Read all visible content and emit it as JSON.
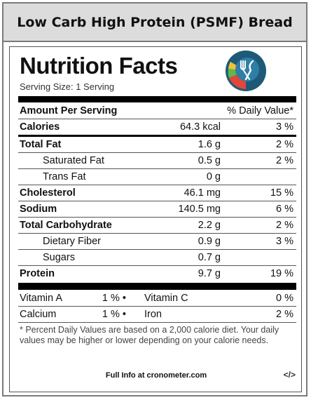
{
  "header": {
    "title": "Low Carb High Protein (PSMF) Bread"
  },
  "label": {
    "title": "Nutrition Facts",
    "serving_size": "Serving Size: 1 Serving",
    "amount_per_serving": "Amount Per Serving",
    "daily_value_header": "% Daily Value*",
    "rows": [
      {
        "name": "Calories",
        "amount": "64.3 kcal",
        "dv": "3 %"
      },
      {
        "name": "Total Fat",
        "amount": "1.6 g",
        "dv": "2 %"
      },
      {
        "name": "Saturated Fat",
        "amount": "0.5 g",
        "dv": "2 %"
      },
      {
        "name": "Trans Fat",
        "amount": "0 g",
        "dv": ""
      },
      {
        "name": "Cholesterol",
        "amount": "46.1 mg",
        "dv": "15 %"
      },
      {
        "name": "Sodium",
        "amount": "140.5 mg",
        "dv": "6 %"
      },
      {
        "name": "Total Carbohydrate",
        "amount": "2.2 g",
        "dv": "2 %"
      },
      {
        "name": "Dietary Fiber",
        "amount": "0.9 g",
        "dv": "3 %"
      },
      {
        "name": "Sugars",
        "amount": "0.7 g",
        "dv": ""
      },
      {
        "name": "Protein",
        "amount": "9.7 g",
        "dv": "19 %"
      }
    ],
    "vitamins": [
      {
        "a_name": "Vitamin A",
        "a_pct": "1 % •",
        "b_name": "Vitamin C",
        "b_pct": "0 %"
      },
      {
        "a_name": "Calcium",
        "a_pct": "1 % •",
        "b_name": "Iron",
        "b_pct": "2 %"
      }
    ],
    "footnote": "* Percent Daily Values are based on a 2,000 calorie diet. Your daily values may be higher or lower depending on your calorie needs.",
    "full_info": "Full Info at cronometer.com",
    "embed_code": "</>"
  },
  "logo": {
    "icon": "cronometer-logo-icon",
    "colors": {
      "circle": "#1e5a78",
      "red": "#e2463a",
      "green": "#5fb848",
      "yellow": "#f1c232"
    }
  }
}
